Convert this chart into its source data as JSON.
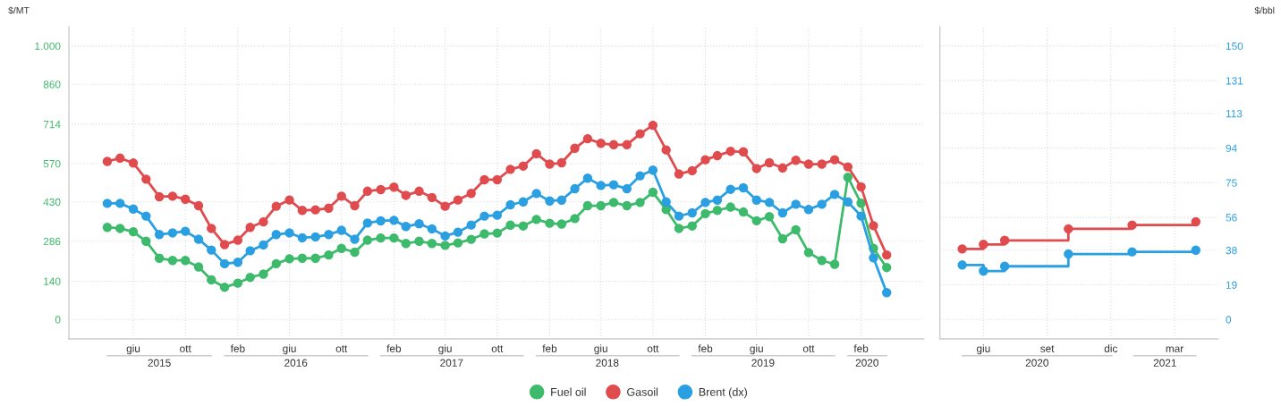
{
  "chart_data": [
    {
      "type": "line",
      "ylabel": "$/MT",
      "x": [
        "2015-04",
        "2015-05",
        "2015-06",
        "2015-07",
        "2015-08",
        "2015-09",
        "2015-10",
        "2015-11",
        "2015-12",
        "2016-01",
        "2016-02",
        "2016-03",
        "2016-04",
        "2016-05",
        "2016-06",
        "2016-07",
        "2016-08",
        "2016-09",
        "2016-10",
        "2016-11",
        "2016-12",
        "2017-01",
        "2017-02",
        "2017-03",
        "2017-04",
        "2017-05",
        "2017-06",
        "2017-07",
        "2017-08",
        "2017-09",
        "2017-10",
        "2017-11",
        "2017-12",
        "2018-01",
        "2018-02",
        "2018-03",
        "2018-04",
        "2018-05",
        "2018-06",
        "2018-07",
        "2018-08",
        "2018-09",
        "2018-10",
        "2018-11",
        "2018-12",
        "2019-01",
        "2019-02",
        "2019-03",
        "2019-04",
        "2019-05",
        "2019-06",
        "2019-07",
        "2019-08",
        "2019-09",
        "2019-10",
        "2019-11",
        "2019-12",
        "2020-01",
        "2020-02",
        "2020-03",
        "2020-04"
      ],
      "series": [
        {
          "name": "Fuel oil",
          "color": "#3dba6b",
          "values": [
            337,
            333,
            321,
            286,
            224,
            216,
            216,
            192,
            145,
            118,
            133,
            154,
            166,
            204,
            222,
            224,
            224,
            236,
            260,
            246,
            290,
            298,
            298,
            278,
            286,
            278,
            271,
            280,
            293,
            313,
            316,
            345,
            342,
            366,
            352,
            349,
            369,
            416,
            416,
            428,
            416,
            428,
            465,
            402,
            333,
            342,
            387,
            399,
            411,
            393,
            361,
            376,
            295,
            328,
            245,
            216,
            202,
            520,
            425,
            260,
            190
          ]
        },
        {
          "name": "Gasoil",
          "color": "#e04b4e",
          "values": [
            578,
            590,
            572,
            513,
            449,
            451,
            440,
            416,
            333,
            274,
            290,
            337,
            357,
            414,
            437,
            399,
            401,
            407,
            451,
            416,
            469,
            475,
            484,
            454,
            469,
            446,
            414,
            437,
            461,
            511,
            511,
            549,
            561,
            606,
            568,
            573,
            626,
            661,
            644,
            639,
            639,
            679,
            710,
            620,
            532,
            544,
            584,
            599,
            615,
            613,
            552,
            573,
            554,
            582,
            568,
            568,
            584,
            558,
            485,
            343,
            236
          ]
        },
        {
          "name": "Brent (dx)",
          "color": "#2a9fe2",
          "axis": "y2",
          "values": [
            63.7,
            63.7,
            60.6,
            56.7,
            46.6,
            47.5,
            48.4,
            44.0,
            38.1,
            30.6,
            31.4,
            37.7,
            40.9,
            46.6,
            47.5,
            44.8,
            45.3,
            46.6,
            48.9,
            44.0,
            52.9,
            54.1,
            54.4,
            51.0,
            52.5,
            49.7,
            45.8,
            47.9,
            51.8,
            56.7,
            57.2,
            62.9,
            64.5,
            69.1,
            65.0,
            65.5,
            71.7,
            77.5,
            73.5,
            73.9,
            71.7,
            78.8,
            81.9,
            64.5,
            56.7,
            58.5,
            64.2,
            65.5,
            71.4,
            72.2,
            65.5,
            64.2,
            58.5,
            63.2,
            60.3,
            63.2,
            68.6,
            64.5,
            56.7,
            33.8,
            14.7
          ]
        }
      ],
      "xlim": [
        "2015-01-01",
        "2020-06-27"
      ],
      "xticks": [
        {
          "value": "2015-06",
          "label": "giu"
        },
        {
          "value": "2015-10",
          "label": "ott"
        },
        {
          "value": "2016-02",
          "label": "feb"
        },
        {
          "value": "2016-06",
          "label": "giu"
        },
        {
          "value": "2016-10",
          "label": "ott"
        },
        {
          "value": "2017-02",
          "label": "feb"
        },
        {
          "value": "2017-06",
          "label": "giu"
        },
        {
          "value": "2017-10",
          "label": "ott"
        },
        {
          "value": "2018-02",
          "label": "feb"
        },
        {
          "value": "2018-06",
          "label": "giu"
        },
        {
          "value": "2018-10",
          "label": "ott"
        },
        {
          "value": "2019-02",
          "label": "feb"
        },
        {
          "value": "2019-06",
          "label": "giu"
        },
        {
          "value": "2019-10",
          "label": "ott"
        },
        {
          "value": "2020-02",
          "label": "feb"
        }
      ],
      "x2lim": [
        "2015-01-01",
        "2020-06-27"
      ],
      "x2ticks": [
        {
          "value": "2015-08-01",
          "label": "2015"
        },
        {
          "value": "2016-06-16",
          "label": "2016"
        },
        {
          "value": "2017-06-16",
          "label": "2017"
        },
        {
          "value": "2018-06-16",
          "label": "2018"
        },
        {
          "value": "2019-06-16",
          "label": "2019"
        },
        {
          "value": "2020-02-15",
          "label": "2020"
        }
      ],
      "ylim": [
        -71,
        1070
      ],
      "yticks": [
        0,
        140,
        286,
        430,
        570,
        714,
        860,
        {
          "value": 1000,
          "label": "1.000"
        }
      ],
      "y2lim": [
        -10.65,
        160.5
      ],
      "grid": true,
      "legend": "bottom",
      "marker": "circle"
    },
    {
      "type": "step",
      "y2label": "$/bbl",
      "categories": [
        null,
        "giu",
        null,
        null,
        "set",
        null,
        null,
        "dic",
        null,
        null,
        "mar",
        null
      ],
      "series": [
        {
          "color": "#2a9fe2",
          "axis": "y2",
          "values": [
            29.9,
            26.6,
            29.2,
            null,
            null,
            35.9,
            null,
            null,
            37.1,
            null,
            null,
            38.0
          ]
        },
        {
          "color": "#e04b4e",
          "axis": "y2",
          "values": [
            38.7,
            41.2,
            43.4,
            null,
            null,
            49.7,
            null,
            null,
            51.8,
            null,
            null,
            53.6
          ]
        }
      ],
      "x2lim": [
        "2020-03-30",
        "2021-05-02"
      ],
      "x2ticks": [
        {
          "value": "2020-08-16",
          "label": "2020"
        },
        {
          "value": "2021-02-15",
          "label": "2021"
        }
      ],
      "y2lim": [
        -10.65,
        160.5
      ],
      "y2ticks": [
        0,
        19,
        38,
        56,
        75,
        94,
        113,
        131,
        150
      ],
      "grid": true,
      "marker": "circle"
    }
  ]
}
